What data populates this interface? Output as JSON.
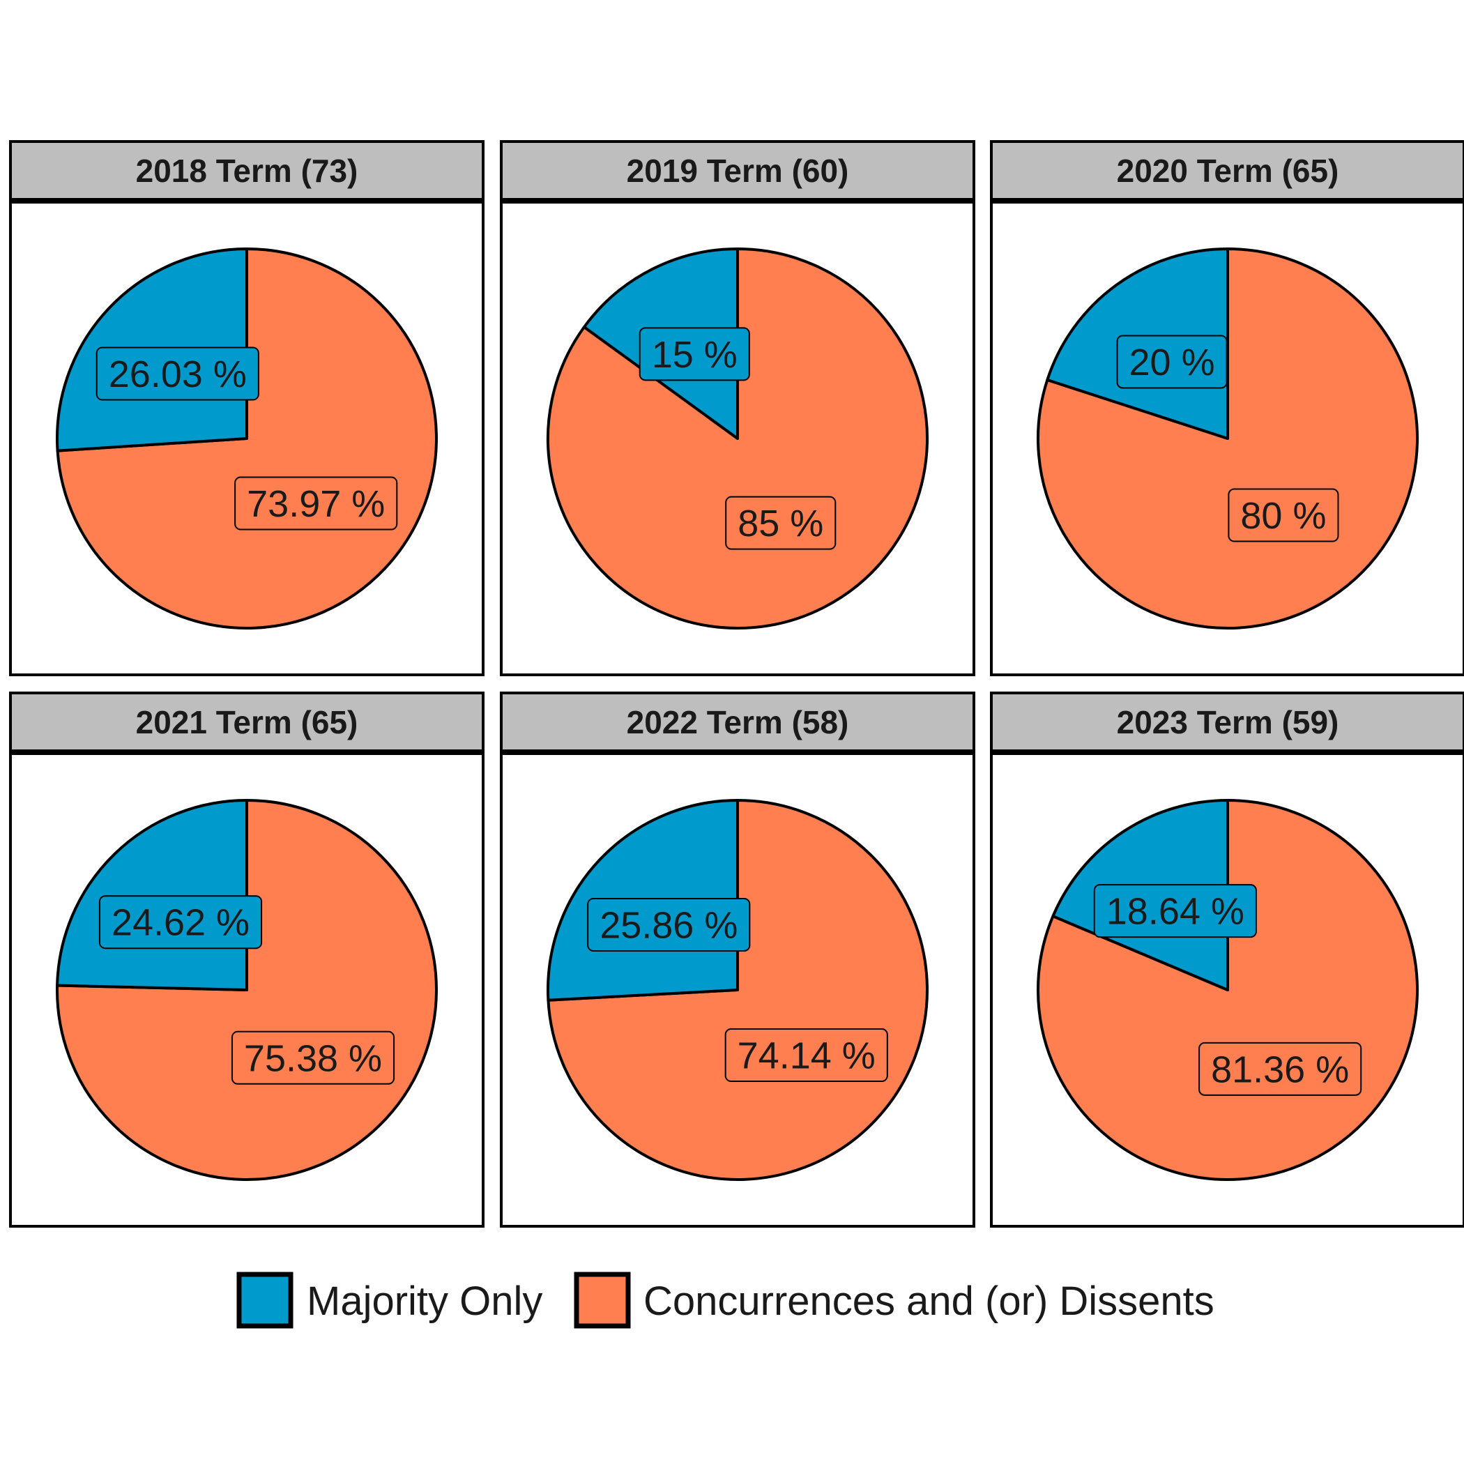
{
  "colors": {
    "majority": "#009ACD",
    "concurrence": "#FF7F50",
    "strip": "#BEBEBE"
  },
  "chart_data": {
    "type": "pie",
    "unit": "%",
    "legend": {
      "position": "bottom",
      "entries": [
        "Majority Only",
        "Concurrences and (or) Dissents"
      ]
    },
    "panels": [
      {
        "title": "2018 Term (73)",
        "majority": 26.03,
        "concurrence": 73.97,
        "majority_label": "26.03 %",
        "concurrence_label": "73.97 %"
      },
      {
        "title": "2019 Term (60)",
        "majority": 15,
        "concurrence": 85,
        "majority_label": "15 %",
        "concurrence_label": "85 %"
      },
      {
        "title": "2020 Term (65)",
        "majority": 20,
        "concurrence": 80,
        "majority_label": "20 %",
        "concurrence_label": "80 %"
      },
      {
        "title": "2021 Term (65)",
        "majority": 24.62,
        "concurrence": 75.38,
        "majority_label": "24.62 %",
        "concurrence_label": "75.38 %"
      },
      {
        "title": "2022 Term (58)",
        "majority": 25.86,
        "concurrence": 74.14,
        "majority_label": "25.86 %",
        "concurrence_label": "74.14 %"
      },
      {
        "title": "2023 Term (59)",
        "majority": 18.64,
        "concurrence": 81.36,
        "majority_label": "18.64 %",
        "concurrence_label": "81.36 %"
      }
    ]
  }
}
